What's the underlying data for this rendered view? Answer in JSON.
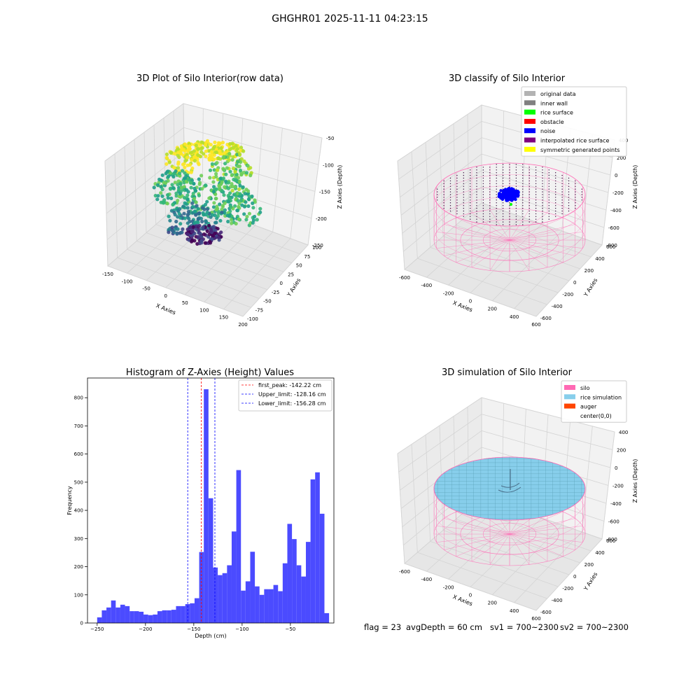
{
  "suptitle": "GHGHR01 2025-11-11 04:23:15",
  "footer": {
    "flag": "flag = 23",
    "avg": "avgDepth = 60 cm",
    "sv1": "sv1 = 700~2300",
    "sv2": "sv2 = 700~2300"
  },
  "colors": {
    "hist_bar": "#4b4bff",
    "peak_line": "#ff0000",
    "limit_line": "#0000ff",
    "silo_wire": "#ff69b4",
    "rice": "#87ceeb",
    "auger": "#ff4500",
    "noise": "#0000ff"
  },
  "chart_data": [
    {
      "type": "scatter",
      "projection": "3d",
      "title": "3D Plot of Silo Interior(row data)",
      "xlabel": "X Axies",
      "ylabel": "Y Axies",
      "zlabel": "Z Axies (Depth)",
      "xticks": [
        "-150",
        "-100",
        "-50",
        "0",
        "50",
        "100",
        "150",
        "200"
      ],
      "yticks": [
        "-100",
        "-75",
        "-50",
        "-25",
        "0",
        "25",
        "50",
        "75",
        "100"
      ],
      "zticks": [
        "-250",
        "-200",
        "-150",
        "-100",
        "-50"
      ],
      "colormap": "viridis",
      "zlim": [
        -260,
        -20
      ]
    },
    {
      "type": "scatter",
      "projection": "3d",
      "title": "3D classify of Silo Interior",
      "xlabel": "X Axies",
      "ylabel": "Y Axies",
      "zlabel": "Z Axies (Depth)",
      "xticks": [
        "-600",
        "-400",
        "-200",
        "0",
        "200",
        "400",
        "600"
      ],
      "yticks": [
        "-600",
        "-400",
        "-200",
        "0",
        "200",
        "400",
        "600"
      ],
      "zticks": [
        "-800",
        "-600",
        "-400",
        "-200",
        "0",
        "200",
        "400"
      ],
      "legend_position": "upper right",
      "legend": [
        {
          "label": "original data",
          "color": "#b3b3b3"
        },
        {
          "label": "inner wall",
          "color": "#808080"
        },
        {
          "label": "rice surface",
          "color": "#00ff00"
        },
        {
          "label": "obstacle",
          "color": "#ff0000"
        },
        {
          "label": "noise",
          "color": "#0000ff"
        },
        {
          "label": "interpolated rice surface",
          "color": "#800080"
        },
        {
          "label": "symmetric generated points",
          "color": "#ffff00"
        }
      ]
    },
    {
      "type": "bar",
      "title": "Histogram of Z-Axies (Height) Values",
      "xlabel": "Depth (cm)",
      "ylabel": "Frequency",
      "xlim": [
        -260,
        -5
      ],
      "ylim": [
        0,
        870
      ],
      "xticks": [
        -250,
        -200,
        -150,
        -100,
        -50
      ],
      "yticks": [
        0,
        100,
        200,
        300,
        400,
        500,
        600,
        700,
        800
      ],
      "bin_start": -250,
      "bin_width": 4.8,
      "values": [
        20,
        45,
        55,
        80,
        55,
        65,
        60,
        42,
        42,
        40,
        30,
        28,
        30,
        42,
        45,
        45,
        47,
        60,
        60,
        67,
        70,
        88,
        252,
        830,
        443,
        197,
        170,
        177,
        205,
        325,
        543,
        115,
        148,
        253,
        130,
        100,
        120,
        120,
        135,
        113,
        212,
        352,
        298,
        205,
        165,
        288,
        510,
        535,
        388,
        35
      ],
      "lines": [
        {
          "label": "first_peak: -142.22 cm",
          "x": -142.22,
          "color": "#ff0000"
        },
        {
          "label": "Upper_limit: -128.16 cm",
          "x": -128.16,
          "color": "#0000ff"
        },
        {
          "label": "Lower_limit: -156.28 cm",
          "x": -156.28,
          "color": "#0000ff"
        }
      ],
      "legend_position": "upper right"
    },
    {
      "type": "surface",
      "projection": "3d",
      "title": "3D simulation of Silo Interior",
      "xlabel": "X Axies",
      "ylabel": "Y Axies",
      "zlabel": "Z Axies (Depth)",
      "xticks": [
        "-600",
        "-400",
        "-200",
        "0",
        "200",
        "400",
        "600"
      ],
      "yticks": [
        "-600",
        "-400",
        "-200",
        "0",
        "200",
        "400",
        "600"
      ],
      "zticks": [
        "-800",
        "-600",
        "-400",
        "-200",
        "0",
        "200",
        "400"
      ],
      "legend_position": "upper right",
      "legend": [
        {
          "label": "silo",
          "color": "#ff69b4"
        },
        {
          "label": "rice simulation",
          "color": "#87ceeb"
        },
        {
          "label": "auger",
          "color": "#ff4500"
        },
        {
          "label": "center(0,0)",
          "color": "#ffffff"
        }
      ]
    }
  ]
}
